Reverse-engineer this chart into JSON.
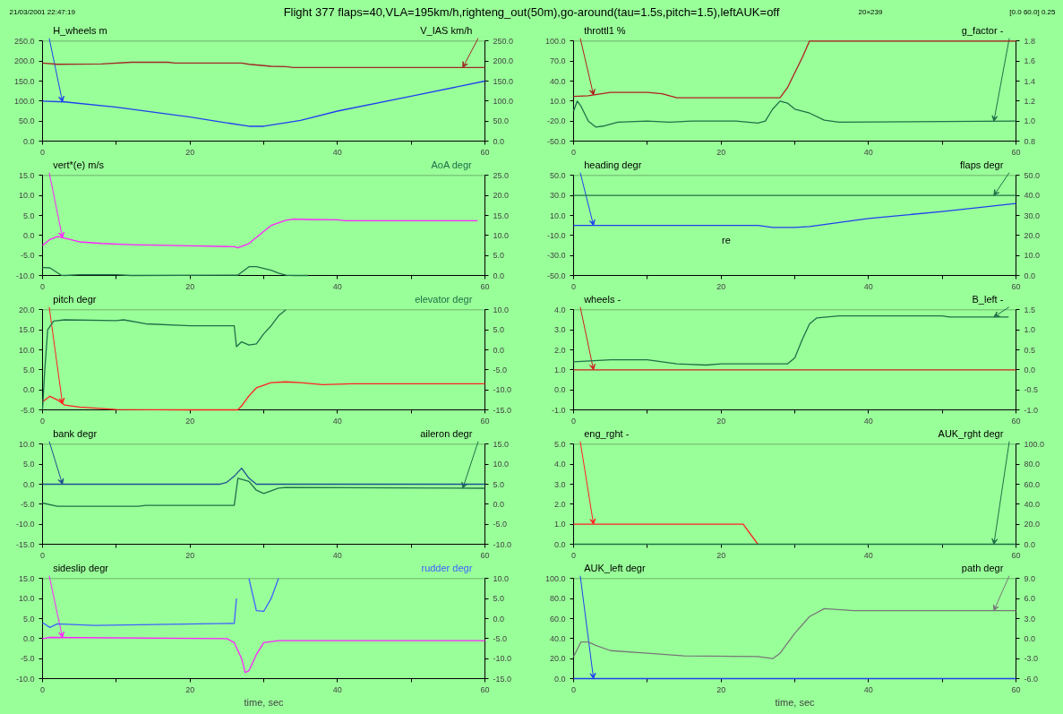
{
  "chart_data": [
    {
      "type": "line",
      "title": "Flight 377 flaps=40,VLA=195km/h,righteng_out(50m),go-around(tau=1.5s,pitch=1.5),leftAUK=off",
      "annotations": [
        "21/03/2001 22:47:19",
        "20×239",
        "[0.0 60.0] 0.25"
      ],
      "xlim": [
        0,
        60
      ],
      "xticks": [
        0,
        {
          "value": 10,
          "label": null
        },
        20,
        {
          "value": 30,
          "label": null
        },
        40,
        {
          "value": 50,
          "label": null
        },
        60
      ],
      "ylim": [
        0,
        250
      ],
      "yticks": [
        {
          "value": 0,
          "label": "0.0"
        },
        {
          "value": 50,
          "label": "50.0"
        },
        {
          "value": 100,
          "label": "100.0"
        },
        {
          "value": 150,
          "label": "150.0"
        },
        {
          "value": 200,
          "label": "200.0"
        },
        {
          "value": 250,
          "label": "250.0"
        }
      ],
      "y2lim": [
        0,
        250
      ],
      "y2ticks": [
        {
          "value": 0,
          "label": "0.0"
        },
        {
          "value": 50,
          "label": "50.0"
        },
        {
          "value": 100,
          "label": "100.0"
        },
        {
          "value": 150,
          "label": "150.0"
        },
        {
          "value": 200,
          "label": "200.0"
        },
        {
          "value": 250,
          "label": "250.0"
        }
      ],
      "series": [
        {
          "name": "H_wheels m",
          "color": "#2040f0",
          "x": [
            0,
            3,
            10,
            20,
            28,
            30,
            35,
            40,
            50,
            60
          ],
          "values": [
            100,
            98,
            85,
            60,
            37,
            37,
            52,
            75,
            112,
            150
          ]
        },
        {
          "name": "V_IAS km/h",
          "color": "#a02828",
          "axis": "y2",
          "x": [
            0,
            2,
            8,
            12,
            17,
            18,
            27,
            28,
            31,
            33,
            34,
            60
          ],
          "values": [
            195,
            192,
            193,
            197,
            197,
            195,
            195,
            192,
            187,
            186,
            184,
            184
          ]
        }
      ]
    },
    {
      "type": "line",
      "xlim": [
        0,
        60
      ],
      "xticks": [
        0,
        {
          "value": 10,
          "label": null
        },
        20,
        {
          "value": 30,
          "label": null
        },
        40,
        {
          "value": 50,
          "label": null
        },
        60
      ],
      "ylim": [
        -10,
        15
      ],
      "yticks": [
        {
          "value": -10,
          "label": "-10.0"
        },
        {
          "value": -5,
          "label": "-5.0"
        },
        {
          "value": 0,
          "label": "0.0"
        },
        {
          "value": 5,
          "label": "5.0"
        },
        {
          "value": 10,
          "label": "10.0"
        },
        {
          "value": 15,
          "label": "15.0"
        }
      ],
      "y2lim": [
        0,
        25
      ],
      "y2ticks": [
        {
          "value": 0,
          "label": "0.0"
        },
        {
          "value": 5,
          "label": "5.0"
        },
        {
          "value": 10,
          "label": "10.0"
        },
        {
          "value": 15,
          "label": "15.0"
        },
        {
          "value": 20,
          "label": "20.0"
        },
        {
          "value": 25,
          "label": "25.0"
        }
      ],
      "series": [
        {
          "name": "vert*(e) m/s",
          "color": "#ff20ff",
          "x": [
            0,
            1,
            2,
            3,
            5,
            8,
            12,
            20,
            26,
            26.5,
            28,
            29,
            31,
            33,
            34,
            36,
            40,
            41,
            59
          ],
          "values": [
            -2.5,
            -1,
            -0.3,
            -0.7,
            -1.6,
            -2,
            -2.3,
            -2.6,
            -2.8,
            -3.1,
            -2,
            -0.5,
            2.5,
            3.8,
            4.1,
            4,
            3.9,
            3.7,
            3.7
          ]
        },
        {
          "name": "AoA degr",
          "color": "#207048",
          "axis": "y2",
          "x": [
            0,
            1,
            2.5,
            3,
            5,
            10,
            12,
            26.5,
            28,
            29,
            31,
            32,
            33,
            34,
            36
          ],
          "values": [
            2,
            1.9,
            0.1,
            0,
            0.2,
            0.2,
            0,
            0.1,
            2.2,
            2.2,
            1.3,
            0.6,
            0.1,
            0,
            0
          ]
        }
      ]
    },
    {
      "type": "line",
      "xlim": [
        0,
        60
      ],
      "xticks": [
        0,
        {
          "value": 10,
          "label": null
        },
        20,
        {
          "value": 30,
          "label": null
        },
        40,
        {
          "value": 50,
          "label": null
        },
        60
      ],
      "ylim": [
        -5,
        20
      ],
      "yticks": [
        {
          "value": -5,
          "label": "-5.0"
        },
        {
          "value": 0,
          "label": "0.0"
        },
        {
          "value": 5,
          "label": "5.0"
        },
        {
          "value": 10,
          "label": "10.0"
        },
        {
          "value": 15,
          "label": "15.0"
        },
        {
          "value": 20,
          "label": "20.0"
        }
      ],
      "y2lim": [
        -15,
        10
      ],
      "y2ticks": [
        {
          "value": -15,
          "label": "-15.0"
        },
        {
          "value": -10,
          "label": "-10.0"
        },
        {
          "value": -5,
          "label": "-5.0"
        },
        {
          "value": 0,
          "label": "0.0"
        },
        {
          "value": 5,
          "label": "5.0"
        },
        {
          "value": 10,
          "label": "10.0"
        }
      ],
      "series": [
        {
          "name": "pitch degr",
          "color": "#ff2020",
          "x": [
            0,
            1,
            2,
            3,
            5,
            10,
            20,
            26.5,
            27,
            28,
            29,
            31,
            33,
            35,
            38,
            42,
            60
          ],
          "values": [
            -3,
            -1.6,
            -2.5,
            -3.8,
            -4.3,
            -4.9,
            -5,
            -5,
            -4,
            -1.5,
            0.5,
            1.8,
            2,
            1.8,
            1.3,
            1.5,
            1.5
          ]
        },
        {
          "name": "elevator degr",
          "color": "#207048",
          "axis": "y2",
          "x": [
            0,
            0.3,
            0.7,
            1.5,
            3,
            10,
            11,
            14,
            20,
            26,
            26.3,
            27,
            28,
            29,
            30,
            31,
            32,
            33
          ],
          "values": [
            -15,
            -5,
            5,
            7.2,
            7.5,
            7.3,
            7.5,
            6.5,
            6,
            6,
            0.8,
            2,
            1.2,
            1.5,
            4,
            6,
            8.5,
            10
          ]
        }
      ]
    },
    {
      "type": "line",
      "xlim": [
        0,
        60
      ],
      "xticks": [
        0,
        {
          "value": 10,
          "label": null
        },
        20,
        {
          "value": 30,
          "label": null
        },
        40,
        {
          "value": 50,
          "label": null
        },
        60
      ],
      "ylim": [
        -15,
        10
      ],
      "yticks": [
        {
          "value": -15,
          "label": "-15.0"
        },
        {
          "value": -10,
          "label": "-10.0"
        },
        {
          "value": -5,
          "label": "-5.0"
        },
        {
          "value": 0,
          "label": "0.0"
        },
        {
          "value": 5,
          "label": "5.0"
        },
        {
          "value": 10,
          "label": "10.0"
        }
      ],
      "y2lim": [
        -10,
        15
      ],
      "y2ticks": [
        {
          "value": -10,
          "label": "-10.0"
        },
        {
          "value": -5,
          "label": "-5.0"
        },
        {
          "value": 0,
          "label": "0.0"
        },
        {
          "value": 5,
          "label": "5.0"
        },
        {
          "value": 10,
          "label": "10.0"
        },
        {
          "value": 15,
          "label": "15.0"
        }
      ],
      "series": [
        {
          "name": "bank degr",
          "color": "#1f4f8f",
          "x": [
            0,
            24,
            25,
            26,
            27,
            28,
            29,
            60
          ],
          "values": [
            0,
            0,
            0.5,
            2,
            4,
            1.5,
            0,
            0
          ]
        },
        {
          "name": "aileron degr",
          "color": "#207048",
          "axis": "y2",
          "x": [
            0,
            2,
            13,
            14,
            26,
            26.5,
            28,
            29,
            30,
            32,
            33,
            60
          ],
          "values": [
            0.3,
            -0.5,
            -0.5,
            -0.3,
            -0.3,
            6.5,
            5.7,
            3.5,
            2.7,
            4,
            4.2,
            4
          ]
        }
      ]
    },
    {
      "type": "line",
      "xlabel": "time, sec",
      "xlim": [
        0,
        60
      ],
      "xticks": [
        0,
        {
          "value": 10,
          "label": null
        },
        20,
        {
          "value": 30,
          "label": null
        },
        40,
        {
          "value": 50,
          "label": null
        },
        60
      ],
      "ylim": [
        -10,
        15
      ],
      "yticks": [
        {
          "value": -10,
          "label": "-10.0"
        },
        {
          "value": -5,
          "label": "-5.0"
        },
        {
          "value": 0,
          "label": "0.0"
        },
        {
          "value": 5,
          "label": "5.0"
        },
        {
          "value": 10,
          "label": "10.0"
        },
        {
          "value": 15,
          "label": "15.0"
        }
      ],
      "y2lim": [
        -15,
        10
      ],
      "y2ticks": [
        {
          "value": -15,
          "label": "-15.0"
        },
        {
          "value": -10,
          "label": "-10.0"
        },
        {
          "value": -5,
          "label": "-5.0"
        },
        {
          "value": 0,
          "label": "0.0"
        },
        {
          "value": 5,
          "label": "5.0"
        },
        {
          "value": 10,
          "label": "10.0"
        }
      ],
      "series": [
        {
          "name": "sideslip degr",
          "color": "#ff20ff",
          "x": [
            0,
            1,
            25,
            26,
            27,
            27.5,
            28,
            29,
            30,
            32,
            60
          ],
          "values": [
            0,
            0.3,
            0,
            -1,
            -5,
            -8.5,
            -8,
            -4,
            -1,
            -0.5,
            -0.5
          ]
        },
        {
          "name": "rudder degr",
          "color": "#4060ff",
          "axis": "y2",
          "x": [
            0,
            1,
            2,
            7,
            26,
            26.3,
            27,
            28,
            29,
            30,
            31,
            32
          ],
          "values": [
            -1,
            -2.2,
            -1.3,
            -1.7,
            -1.2,
            5,
            null,
            10,
            2,
            1.8,
            5,
            10
          ]
        }
      ]
    },
    {
      "type": "line",
      "xlim": [
        0,
        60
      ],
      "xticks": [
        0,
        {
          "value": 10,
          "label": null
        },
        20,
        {
          "value": 30,
          "label": null
        },
        40,
        {
          "value": 50,
          "label": null
        },
        60
      ],
      "ylim": [
        -50,
        100
      ],
      "yticks": [
        {
          "value": -50,
          "label": "-50.0"
        },
        {
          "value": -20,
          "label": "-20.0"
        },
        {
          "value": 10,
          "label": "10.0"
        },
        {
          "value": 40,
          "label": "40.0"
        },
        {
          "value": 70,
          "label": "70.0"
        },
        {
          "value": 100,
          "label": "100.0"
        }
      ],
      "y2lim": [
        0.8,
        1.8
      ],
      "y2ticks": [
        {
          "value": 0.8,
          "label": "0.8"
        },
        {
          "value": 1.0,
          "label": "1.0"
        },
        {
          "value": 1.2,
          "label": "1.2"
        },
        {
          "value": 1.4,
          "label": "1.4"
        },
        {
          "value": 1.6,
          "label": "1.6"
        },
        {
          "value": 1.8,
          "label": "1.8"
        }
      ],
      "series": [
        {
          "name": "throttl1 %",
          "color": "#b02020",
          "x": [
            0,
            2,
            5,
            10,
            12,
            14,
            20,
            28,
            29,
            31,
            32,
            60
          ],
          "values": [
            17,
            18,
            23,
            23,
            21,
            15,
            15,
            15,
            30,
            75,
            100,
            100
          ]
        },
        {
          "name": "g_factor -",
          "color": "#207048",
          "axis": "y2",
          "x": [
            0,
            0.5,
            1,
            2,
            3,
            4,
            6,
            10,
            13,
            16,
            22,
            25,
            26,
            27,
            28,
            29,
            30,
            32,
            34,
            36,
            60
          ],
          "values": [
            1.1,
            1.2,
            1.15,
            1.0,
            0.94,
            0.95,
            0.99,
            1.0,
            0.99,
            1.0,
            1.0,
            0.98,
            1.0,
            1.12,
            1.2,
            1.18,
            1.12,
            1.08,
            1.01,
            0.99,
            1.0
          ]
        }
      ]
    },
    {
      "type": "line",
      "annotations": [
        "re"
      ],
      "xlim": [
        0,
        60
      ],
      "xticks": [
        0,
        {
          "value": 10,
          "label": null
        },
        20,
        {
          "value": 30,
          "label": null
        },
        40,
        {
          "value": 50,
          "label": null
        },
        60
      ],
      "ylim": [
        -50,
        50
      ],
      "yticks": [
        {
          "value": -50,
          "label": "-50.0"
        },
        {
          "value": -30,
          "label": "-30.0"
        },
        {
          "value": -10,
          "label": "-10.0"
        },
        {
          "value": 10,
          "label": "10.0"
        },
        {
          "value": 30,
          "label": "30.0"
        },
        {
          "value": 50,
          "label": "50.0"
        }
      ],
      "y2lim": [
        0,
        50
      ],
      "y2ticks": [
        {
          "value": 0,
          "label": "0.0"
        },
        {
          "value": 10,
          "label": "10.0"
        },
        {
          "value": 20,
          "label": "20.0"
        },
        {
          "value": 30,
          "label": "30.0"
        },
        {
          "value": 40,
          "label": "40.0"
        },
        {
          "value": 50,
          "label": "50.0"
        }
      ],
      "series": [
        {
          "name": "heading degr",
          "color": "#2040f0",
          "x": [
            0,
            25,
            27,
            30,
            32,
            40,
            50,
            60
          ],
          "values": [
            0,
            0,
            -2,
            -2,
            -1,
            7,
            14,
            22
          ]
        },
        {
          "name": "flaps degr",
          "color": "#207048",
          "axis": "y2",
          "x": [
            0,
            60
          ],
          "values": [
            40,
            40
          ]
        }
      ]
    },
    {
      "type": "line",
      "xlim": [
        0,
        60
      ],
      "xticks": [
        0,
        {
          "value": 10,
          "label": null
        },
        20,
        {
          "value": 30,
          "label": null
        },
        40,
        {
          "value": 50,
          "label": null
        },
        60
      ],
      "ylim": [
        -1,
        4
      ],
      "yticks": [
        {
          "value": -1,
          "label": "-1.0"
        },
        {
          "value": 0,
          "label": "0.0"
        },
        {
          "value": 1,
          "label": "1.0"
        },
        {
          "value": 2,
          "label": "2.0"
        },
        {
          "value": 3,
          "label": "3.0"
        },
        {
          "value": 4,
          "label": "4.0"
        }
      ],
      "y2lim": [
        -1,
        1.5
      ],
      "y2ticks": [
        {
          "value": -1,
          "label": "-1.0"
        },
        {
          "value": -0.5,
          "label": "-0.5"
        },
        {
          "value": 0,
          "label": "0.0"
        },
        0.5,
        {
          "value": 1,
          "label": "1.0"
        },
        1.5
      ],
      "series": [
        {
          "name": "wheels -",
          "color": "#d02020",
          "x": [
            0,
            60
          ],
          "values": [
            1,
            1
          ]
        },
        {
          "name": "B_left -",
          "color": "#207048",
          "axis": "y2",
          "x": [
            0,
            5,
            10,
            14,
            18,
            20,
            29,
            30,
            31,
            32,
            33,
            36,
            50,
            51,
            59
          ],
          "values": [
            0.2,
            0.25,
            0.25,
            0.15,
            0.12,
            0.15,
            0.15,
            0.3,
            0.75,
            1.15,
            1.3,
            1.35,
            1.35,
            1.32,
            1.32
          ]
        }
      ]
    },
    {
      "type": "line",
      "xlim": [
        0,
        60
      ],
      "xticks": [
        0,
        {
          "value": 10,
          "label": null
        },
        20,
        {
          "value": 30,
          "label": null
        },
        40,
        {
          "value": 50,
          "label": null
        },
        60
      ],
      "ylim": [
        0,
        5
      ],
      "yticks": [
        {
          "value": 0,
          "label": "0.0"
        },
        {
          "value": 1,
          "label": "1.0"
        },
        {
          "value": 2,
          "label": "2.0"
        },
        {
          "value": 3,
          "label": "3.0"
        },
        {
          "value": 4,
          "label": "4.0"
        },
        {
          "value": 5,
          "label": "5.0"
        }
      ],
      "y2lim": [
        0,
        100
      ],
      "y2ticks": [
        {
          "value": 0,
          "label": "0.0"
        },
        {
          "value": 20,
          "label": "20.0"
        },
        {
          "value": 40,
          "label": "40.0"
        },
        {
          "value": 60,
          "label": "60.0"
        },
        {
          "value": 80,
          "label": "80.0"
        },
        {
          "value": 100,
          "label": "100.0"
        }
      ],
      "series": [
        {
          "name": "eng_rght -",
          "color": "#ff2020",
          "x": [
            0,
            23,
            25
          ],
          "values": [
            1,
            1,
            0
          ]
        },
        {
          "name": "AUK_rght degr",
          "color": "#207048",
          "axis": "y2",
          "x": [
            0,
            60
          ],
          "values": [
            0,
            0
          ]
        }
      ]
    },
    {
      "type": "line",
      "xlabel": "time, sec",
      "xlim": [
        0,
        60
      ],
      "xticks": [
        0,
        {
          "value": 10,
          "label": null
        },
        20,
        {
          "value": 30,
          "label": null
        },
        40,
        {
          "value": 50,
          "label": null
        },
        60
      ],
      "ylim": [
        0,
        100
      ],
      "yticks": [
        {
          "value": 0,
          "label": "0.0"
        },
        {
          "value": 20,
          "label": "20.0"
        },
        {
          "value": 40,
          "label": "40.0"
        },
        {
          "value": 60,
          "label": "60.0"
        },
        {
          "value": 80,
          "label": "80.0"
        },
        {
          "value": 100,
          "label": "100.0"
        }
      ],
      "y2lim": [
        -6,
        9
      ],
      "y2ticks": [
        {
          "value": -6,
          "label": "-6.0"
        },
        {
          "value": -3,
          "label": "-3.0"
        },
        {
          "value": 0,
          "label": "0.0"
        },
        {
          "value": 3,
          "label": "3.0"
        },
        {
          "value": 6,
          "label": "6.0"
        },
        {
          "value": 9,
          "label": "9.0"
        }
      ],
      "series": [
        {
          "name": "AUK_left degr",
          "color": "#2040f0",
          "x": [
            0,
            60
          ],
          "values": [
            0,
            0
          ]
        },
        {
          "name": "path degr",
          "color": "#787878",
          "axis": "y2",
          "x": [
            0,
            1,
            2,
            3,
            5,
            10,
            15,
            25,
            27,
            28,
            30,
            32,
            34,
            38,
            60
          ],
          "values": [
            -2.7,
            -0.5,
            -0.5,
            -1.0,
            -1.8,
            -2.2,
            -2.6,
            -2.7,
            -3,
            -2.2,
            0.8,
            3.3,
            4.5,
            4.2,
            4.2
          ]
        }
      ]
    }
  ]
}
